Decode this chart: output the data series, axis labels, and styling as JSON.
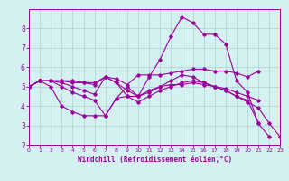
{
  "xlabel": "Windchill (Refroidissement éolien,°C)",
  "bg_color": "#d5f0f0",
  "plot_bg_color": "#d5f0f0",
  "grid_color": "#b0d8d8",
  "line_color": "#990099",
  "xlim": [
    0,
    23
  ],
  "ylim": [
    2,
    9
  ],
  "yticks": [
    2,
    3,
    4,
    5,
    6,
    7,
    8
  ],
  "xticks": [
    0,
    1,
    2,
    3,
    4,
    5,
    6,
    7,
    8,
    9,
    10,
    11,
    12,
    13,
    14,
    15,
    16,
    17,
    18,
    19,
    20,
    21,
    22,
    23
  ],
  "lines": [
    {
      "x": [
        0,
        1,
        2,
        3,
        4,
        5,
        6,
        7,
        8,
        9,
        10,
        11,
        12,
        13,
        14,
        15,
        16,
        17,
        18,
        19,
        20,
        21
      ],
      "y": [
        5.0,
        5.3,
        5.3,
        5.3,
        5.2,
        5.2,
        5.2,
        5.5,
        5.4,
        5.1,
        5.6,
        5.6,
        5.6,
        5.7,
        5.8,
        5.9,
        5.9,
        5.8,
        5.8,
        5.7,
        5.5,
        5.8
      ]
    },
    {
      "x": [
        0,
        1,
        2,
        3,
        4,
        5,
        6,
        7,
        8,
        9,
        10,
        11,
        12,
        13,
        14,
        15,
        16,
        17,
        18,
        19,
        20,
        21,
        22
      ],
      "y": [
        5.0,
        5.3,
        5.0,
        4.0,
        3.7,
        3.5,
        3.5,
        3.5,
        4.4,
        4.5,
        4.5,
        5.5,
        6.4,
        7.6,
        8.6,
        8.3,
        7.7,
        7.7,
        7.2,
        5.3,
        4.7,
        3.1,
        2.4
      ]
    },
    {
      "x": [
        0,
        1,
        2,
        3,
        4,
        5,
        6,
        7,
        8,
        9,
        10,
        11,
        12,
        13,
        14,
        15,
        16,
        17,
        18,
        19,
        20,
        21
      ],
      "y": [
        5.0,
        5.3,
        5.3,
        5.3,
        5.3,
        5.2,
        5.1,
        5.5,
        5.2,
        4.8,
        4.5,
        4.8,
        5.0,
        5.1,
        5.1,
        5.2,
        5.1,
        5.0,
        4.9,
        4.7,
        4.5,
        4.3
      ]
    },
    {
      "x": [
        0,
        1,
        2,
        3,
        4,
        5,
        6,
        7,
        8,
        9,
        10,
        11,
        12,
        13,
        14,
        15,
        16,
        17,
        18,
        19,
        20,
        21,
        22,
        23
      ],
      "y": [
        5.0,
        5.3,
        5.3,
        5.2,
        5.0,
        4.8,
        4.6,
        5.5,
        5.2,
        4.5,
        4.2,
        4.5,
        4.8,
        5.0,
        5.2,
        5.3,
        5.2,
        5.0,
        4.8,
        4.5,
        4.2,
        3.9,
        3.1,
        2.4
      ]
    },
    {
      "x": [
        0,
        1,
        2,
        3,
        4,
        5,
        6,
        7,
        8,
        9,
        10,
        11,
        12,
        13,
        14,
        15,
        16,
        17,
        18,
        19,
        20,
        21
      ],
      "y": [
        5.0,
        5.3,
        5.3,
        5.0,
        4.7,
        4.5,
        4.3,
        3.5,
        4.4,
        5.0,
        4.5,
        4.7,
        5.0,
        5.3,
        5.6,
        5.5,
        5.2,
        5.0,
        4.8,
        4.5,
        4.3,
        3.1
      ]
    }
  ]
}
